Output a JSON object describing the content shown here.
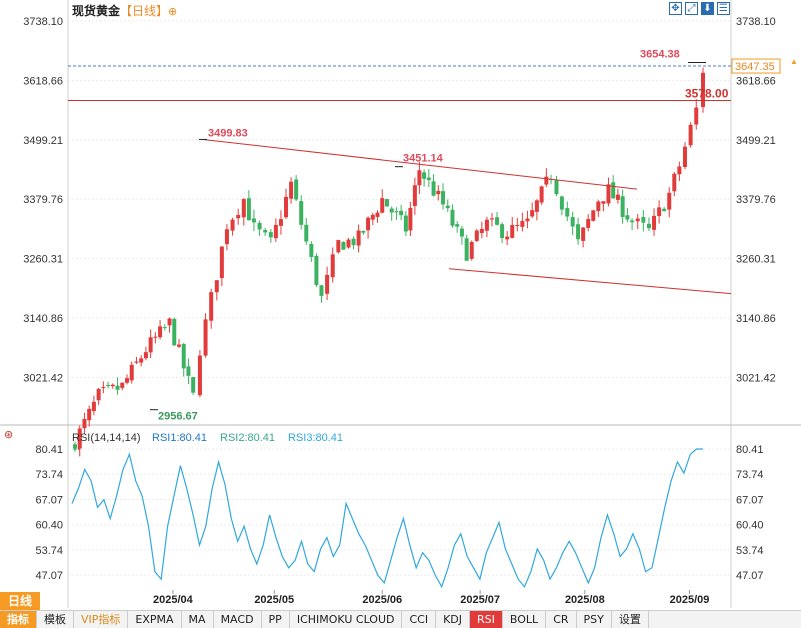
{
  "header": {
    "instrument": "现货黄金",
    "period": "【日线】",
    "add_icon": "⊕",
    "toolbar": [
      "move-icon",
      "fit-icon",
      "download-icon",
      "menu-icon"
    ]
  },
  "price_panel": {
    "y_ticks": [
      "3738.10",
      "3618.66",
      "3499.21",
      "3379.76",
      "3260.31",
      "3140.86",
      "3021.42"
    ],
    "last_price_label": "3647.35",
    "annotations": {
      "high": "3654.38",
      "peak_apr": "3499.83",
      "peak_jun": "3451.14",
      "low": "2956.67",
      "level": "3578.00"
    }
  },
  "rsi_panel": {
    "title": "RSI(14,14,14)",
    "rsi1": "RSI1:80.41",
    "rsi2": "RSI2:80.41",
    "rsi3": "RSI3:80.41",
    "y_ticks": [
      "80.41",
      "73.74",
      "67.07",
      "60.40",
      "53.74",
      "47.07"
    ]
  },
  "x_axis": [
    "2025/04",
    "2025/05",
    "2025/06",
    "2025/07",
    "2025/08",
    "2025/09"
  ],
  "bottom_bar": {
    "period_tab": "日线",
    "tabs": [
      "指标",
      "模板",
      "VIP指标",
      "EXPMA",
      "MA",
      "MACD",
      "PP",
      "ICHIMOKU CLOUD",
      "CCI",
      "KDJ",
      "RSI",
      "BOLL",
      "CR",
      "PSY",
      "设置"
    ],
    "selected": "RSI"
  },
  "colors": {
    "up": "#e23b3b",
    "down": "#3bb25f",
    "rsi_line": "#31a8dc",
    "trendline": "#d0312d",
    "grid": "#ebebeb",
    "price_label_bg": "#f59a23"
  },
  "chart_data": [
    {
      "type": "candlestick",
      "title": "现货黄金【日线】",
      "ylim": [
        2940,
        3760
      ],
      "close_path": [
        [
          "2025-03-03",
          2893
        ],
        [
          "2025-03-10",
          2984
        ],
        [
          "2025-03-17",
          3003
        ],
        [
          "2025-03-24",
          3078
        ],
        [
          "2025-03-31",
          3130
        ],
        [
          "2025-04-07",
          2982
        ],
        [
          "2025-04-09",
          3080
        ],
        [
          "2025-04-14",
          3230
        ],
        [
          "2025-04-17",
          3330
        ],
        [
          "2025-04-22",
          3380
        ],
        [
          "2025-04-25",
          3320
        ],
        [
          "2025-04-30",
          3290
        ],
        [
          "2025-05-06",
          3410
        ],
        [
          "2025-05-09",
          3330
        ],
        [
          "2025-05-15",
          3180
        ],
        [
          "2025-05-20",
          3290
        ],
        [
          "2025-05-26",
          3300
        ],
        [
          "2025-06-02",
          3380
        ],
        [
          "2025-06-09",
          3320
        ],
        [
          "2025-06-13",
          3440
        ],
        [
          "2025-06-20",
          3368
        ],
        [
          "2025-06-27",
          3273
        ],
        [
          "2025-07-03",
          3330
        ],
        [
          "2025-07-09",
          3313
        ],
        [
          "2025-07-15",
          3330
        ],
        [
          "2025-07-22",
          3430
        ],
        [
          "2025-07-30",
          3290
        ],
        [
          "2025-08-05",
          3380
        ],
        [
          "2025-08-08",
          3397
        ],
        [
          "2025-08-15",
          3335
        ],
        [
          "2025-08-20",
          3315
        ],
        [
          "2025-08-26",
          3390
        ],
        [
          "2025-08-29",
          3447
        ],
        [
          "2025-09-03",
          3560
        ],
        [
          "2025-09-05",
          3640
        ]
      ],
      "annotations": [
        {
          "label": "3654.38",
          "date": "2025-09-05",
          "value": 3654.38
        },
        {
          "label": "3499.83",
          "date": "2025-04-22",
          "value": 3499.83
        },
        {
          "label": "3451.14",
          "date": "2025-06-13",
          "value": 3451.14
        },
        {
          "label": "2956.67",
          "date": "2025-04-07",
          "value": 2956.67
        },
        {
          "label": "3578.00",
          "type": "horizontal",
          "value": 3578.0
        }
      ],
      "current_price": 3647.35
    },
    {
      "type": "line",
      "title": "RSI(14,14,14)",
      "series": [
        {
          "name": "RSI1",
          "last": 80.41
        },
        {
          "name": "RSI2",
          "last": 80.41
        },
        {
          "name": "RSI3",
          "last": 80.41
        }
      ],
      "ylim": [
        43.4,
        80.41
      ],
      "values": [
        66,
        70,
        75,
        72,
        65,
        67,
        62,
        68,
        75,
        79,
        72,
        68,
        60,
        48,
        46,
        60,
        68,
        76,
        70,
        63,
        55,
        60,
        70,
        77,
        71,
        62,
        56,
        60,
        54,
        50,
        55,
        63,
        57,
        52,
        49,
        51,
        56,
        50,
        48,
        54,
        57,
        52,
        55,
        66,
        62,
        58,
        55,
        51,
        47,
        45,
        51,
        57,
        62,
        55,
        49,
        53,
        51,
        47,
        44,
        49,
        55,
        58,
        52,
        49,
        46,
        53,
        57,
        61,
        54,
        50,
        46,
        44,
        48,
        54,
        51,
        46,
        49,
        53,
        56,
        53,
        49,
        45,
        49,
        57,
        63,
        58,
        52,
        54,
        58,
        54,
        48,
        49,
        57,
        65,
        72,
        77,
        74,
        79,
        80.41,
        80.41
      ]
    }
  ]
}
